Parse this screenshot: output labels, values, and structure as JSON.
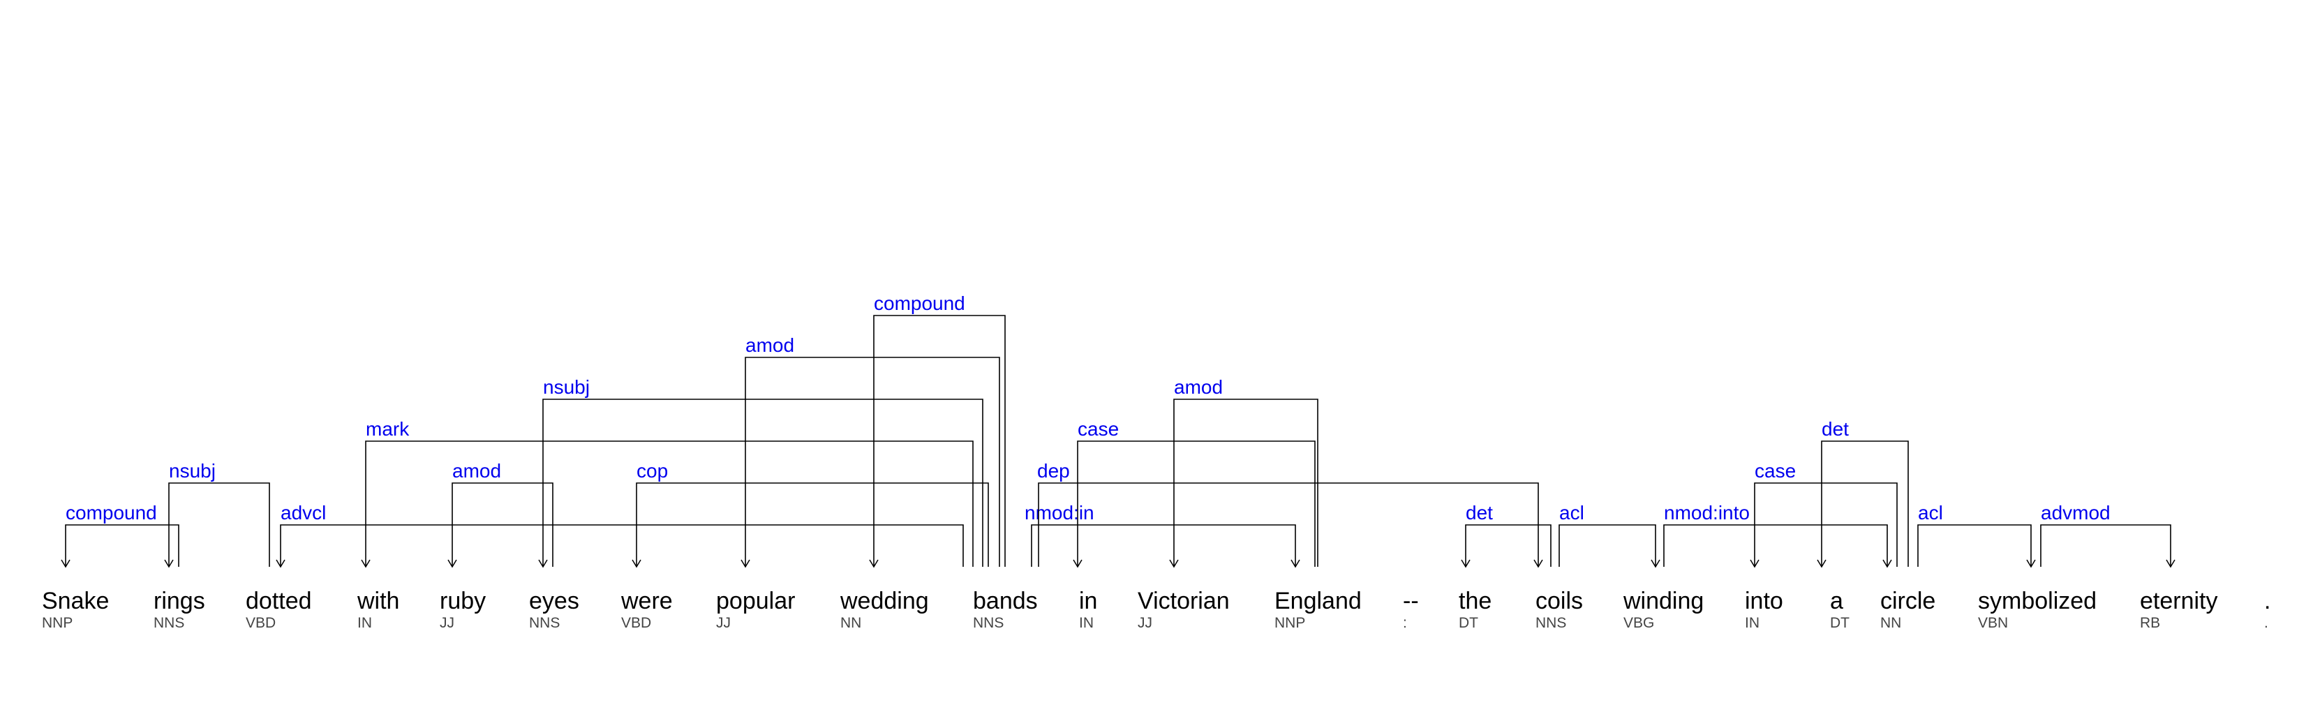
{
  "sentence": {
    "tokens": [
      {
        "word": "Snake",
        "tag": "NNP"
      },
      {
        "word": "rings",
        "tag": "NNS"
      },
      {
        "word": "dotted",
        "tag": "VBD"
      },
      {
        "word": "with",
        "tag": "IN"
      },
      {
        "word": "ruby",
        "tag": "JJ"
      },
      {
        "word": "eyes",
        "tag": "NNS"
      },
      {
        "word": "were",
        "tag": "VBD"
      },
      {
        "word": "popular",
        "tag": "JJ"
      },
      {
        "word": "wedding",
        "tag": "NN"
      },
      {
        "word": "bands",
        "tag": "NNS"
      },
      {
        "word": "in",
        "tag": "IN"
      },
      {
        "word": "Victorian",
        "tag": "JJ"
      },
      {
        "word": "England",
        "tag": "NNP"
      },
      {
        "word": "--",
        "tag": ":"
      },
      {
        "word": "the",
        "tag": "DT"
      },
      {
        "word": "coils",
        "tag": "NNS"
      },
      {
        "word": "winding",
        "tag": "VBG"
      },
      {
        "word": "into",
        "tag": "IN"
      },
      {
        "word": "a",
        "tag": "DT"
      },
      {
        "word": "circle",
        "tag": "NN"
      },
      {
        "word": "symbolized",
        "tag": "VBN"
      },
      {
        "word": "eternity",
        "tag": "RB"
      },
      {
        "word": ".",
        "tag": "."
      }
    ],
    "dependencies": [
      {
        "label": "compound",
        "head": 1,
        "dep": 0
      },
      {
        "label": "nsubj",
        "head": 2,
        "dep": 1
      },
      {
        "label": "advcl",
        "head": 9,
        "dep": 2
      },
      {
        "label": "mark",
        "head": 9,
        "dep": 3
      },
      {
        "label": "amod",
        "head": 5,
        "dep": 4
      },
      {
        "label": "nsubj",
        "head": 9,
        "dep": 5
      },
      {
        "label": "cop",
        "head": 9,
        "dep": 6
      },
      {
        "label": "amod",
        "head": 9,
        "dep": 7
      },
      {
        "label": "compound",
        "head": 9,
        "dep": 8
      },
      {
        "label": "nmod:in",
        "head": 9,
        "dep": 12
      },
      {
        "label": "dep",
        "head": 9,
        "dep": 15
      },
      {
        "label": "case",
        "head": 12,
        "dep": 10
      },
      {
        "label": "amod",
        "head": 12,
        "dep": 11
      },
      {
        "label": "det",
        "head": 15,
        "dep": 14
      },
      {
        "label": "acl",
        "head": 15,
        "dep": 16
      },
      {
        "label": "nmod:into",
        "head": 16,
        "dep": 19
      },
      {
        "label": "case",
        "head": 19,
        "dep": 17
      },
      {
        "label": "det",
        "head": 19,
        "dep": 18
      },
      {
        "label": "acl",
        "head": 19,
        "dep": 20
      },
      {
        "label": "advmod",
        "head": 20,
        "dep": 21
      }
    ]
  }
}
